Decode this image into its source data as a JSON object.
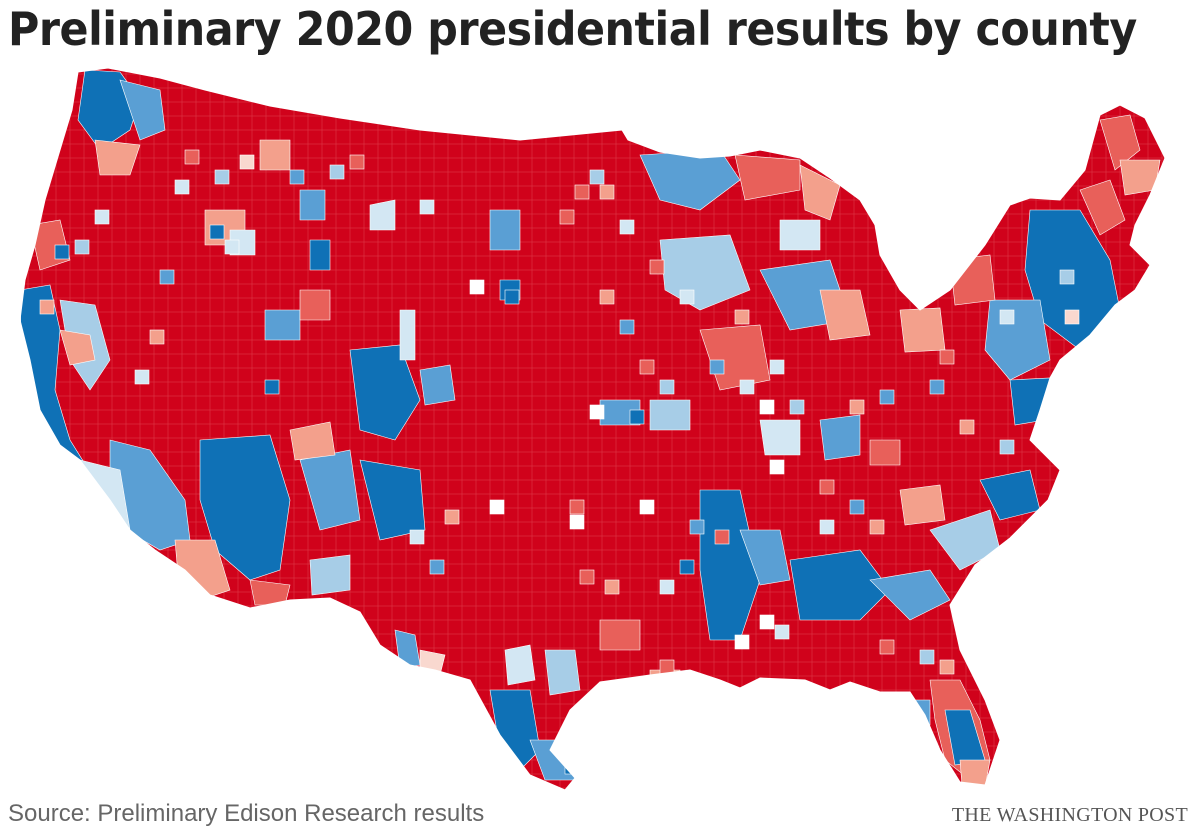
{
  "header": {
    "title": "Preliminary 2020 presidential results by county"
  },
  "footer": {
    "source": "Source: Preliminary Edison Research results",
    "credit": "THE WASHINGTON POST"
  },
  "map": {
    "region": "United States (contiguous 48 states)",
    "unit": "county",
    "colors": {
      "rep_strong": "#d0021b",
      "rep_medium": "#e8605a",
      "rep_light": "#f3a08c",
      "rep_faint": "#f9d8cf",
      "dem_strong": "#0f71b6",
      "dem_medium": "#5a9fd4",
      "dem_light": "#a7cde7",
      "dem_faint": "#d3e7f3",
      "no_data": "#ffffff",
      "border": "#ffffff"
    }
  }
}
